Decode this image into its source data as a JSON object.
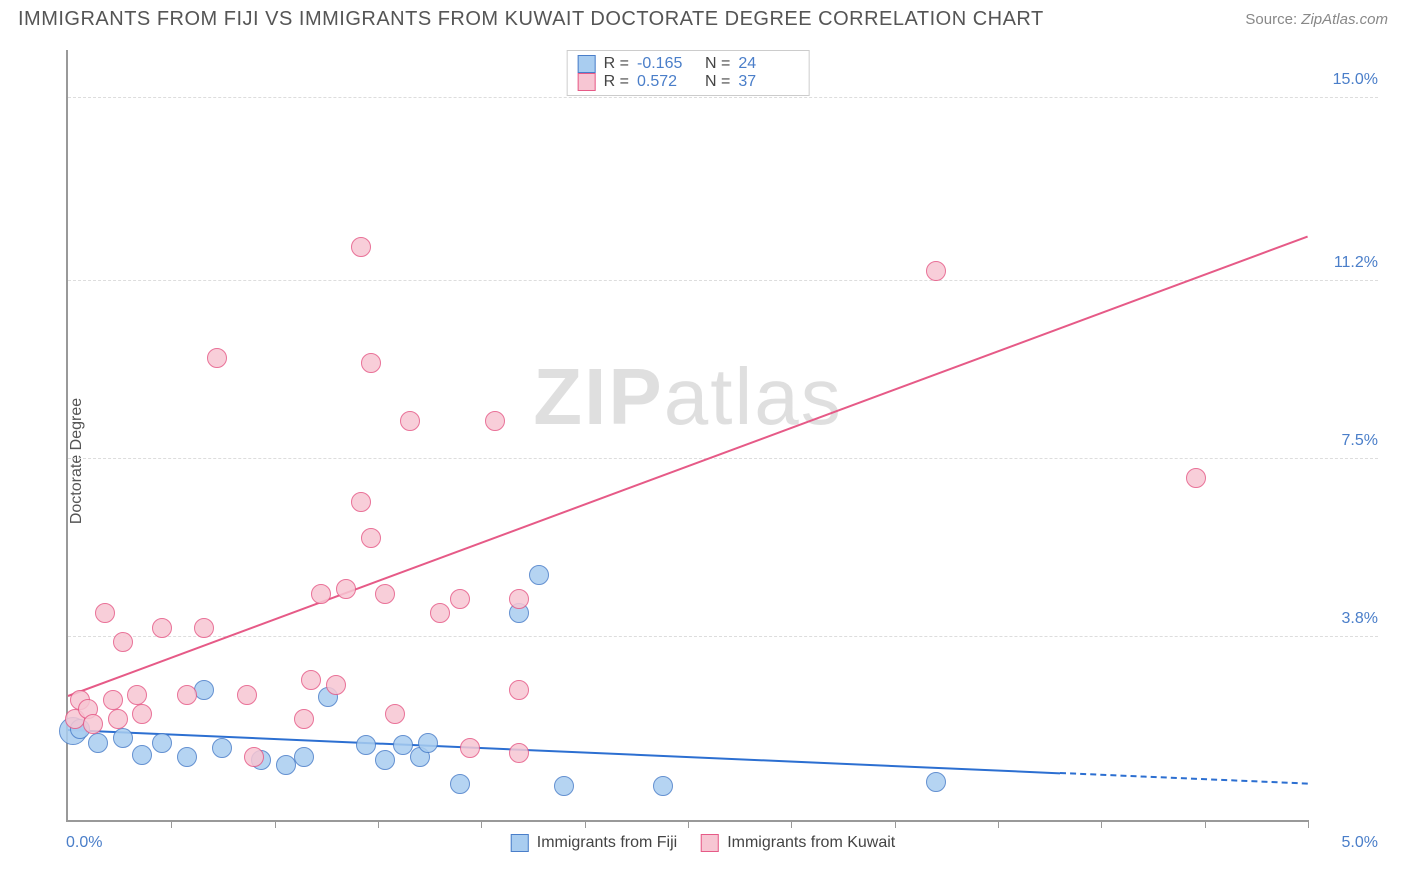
{
  "title": "IMMIGRANTS FROM FIJI VS IMMIGRANTS FROM KUWAIT DOCTORATE DEGREE CORRELATION CHART",
  "source_label": "Source:",
  "source_value": "ZipAtlas.com",
  "y_axis_label": "Doctorate Degree",
  "watermark_a": "ZIP",
  "watermark_b": "atlas",
  "chart": {
    "type": "scatter",
    "background_color": "#ffffff",
    "grid_color": "#dddddd",
    "axis_color": "#999999",
    "x_min": 0.0,
    "x_max": 5.0,
    "y_min": 0.0,
    "y_max": 16.0,
    "x_origin_label": "0.0%",
    "x_max_label": "5.0%",
    "y_ticks": [
      {
        "value": 3.8,
        "label": "3.8%"
      },
      {
        "value": 7.5,
        "label": "7.5%"
      },
      {
        "value": 11.2,
        "label": "11.2%"
      },
      {
        "value": 15.0,
        "label": "15.0%"
      }
    ],
    "x_tick_count": 12,
    "marker_radius": 10,
    "marker_stroke_width": 1.5,
    "series": [
      {
        "id": "fiji",
        "label": "Immigrants from Fiji",
        "fill_color": "#a9cdf0",
        "stroke_color": "#4a7ec9",
        "r_label": "R =",
        "r_value": "-0.165",
        "n_label": "N =",
        "n_value": "24",
        "trend": {
          "x1": 0.0,
          "y1": 1.85,
          "x2": 4.0,
          "y2": 0.95,
          "color": "#2c6fd1"
        },
        "trend_extrap": {
          "x1": 4.0,
          "y1": 0.95,
          "x2": 5.0,
          "y2": 0.73,
          "color": "#2c6fd1"
        },
        "points": [
          {
            "x": 0.02,
            "y": 1.85,
            "r": 14
          },
          {
            "x": 0.05,
            "y": 1.9
          },
          {
            "x": 0.12,
            "y": 1.6
          },
          {
            "x": 0.22,
            "y": 1.7
          },
          {
            "x": 0.3,
            "y": 1.35
          },
          {
            "x": 0.38,
            "y": 1.6
          },
          {
            "x": 0.48,
            "y": 1.3
          },
          {
            "x": 0.55,
            "y": 2.7
          },
          {
            "x": 0.62,
            "y": 1.5
          },
          {
            "x": 0.78,
            "y": 1.25
          },
          {
            "x": 0.88,
            "y": 1.15
          },
          {
            "x": 0.95,
            "y": 1.3
          },
          {
            "x": 1.05,
            "y": 2.55
          },
          {
            "x": 1.2,
            "y": 1.55
          },
          {
            "x": 1.28,
            "y": 1.25
          },
          {
            "x": 1.35,
            "y": 1.55
          },
          {
            "x": 1.42,
            "y": 1.3
          },
          {
            "x": 1.45,
            "y": 1.6
          },
          {
            "x": 1.58,
            "y": 0.75
          },
          {
            "x": 1.82,
            "y": 4.3
          },
          {
            "x": 1.9,
            "y": 5.1
          },
          {
            "x": 2.0,
            "y": 0.7
          },
          {
            "x": 2.4,
            "y": 0.7
          },
          {
            "x": 3.5,
            "y": 0.8
          }
        ]
      },
      {
        "id": "kuwait",
        "label": "Immigrants from Kuwait",
        "fill_color": "#f7c6d3",
        "stroke_color": "#e65a87",
        "r_label": "R =",
        "r_value": "0.572",
        "n_label": "N =",
        "n_value": "37",
        "trend": {
          "x1": 0.0,
          "y1": 2.55,
          "x2": 5.0,
          "y2": 12.1,
          "color": "#e65a87"
        },
        "points": [
          {
            "x": 0.03,
            "y": 2.1
          },
          {
            "x": 0.05,
            "y": 2.5
          },
          {
            "x": 0.08,
            "y": 2.3
          },
          {
            "x": 0.1,
            "y": 2.0
          },
          {
            "x": 0.15,
            "y": 4.3
          },
          {
            "x": 0.18,
            "y": 2.5
          },
          {
            "x": 0.2,
            "y": 2.1
          },
          {
            "x": 0.22,
            "y": 3.7
          },
          {
            "x": 0.28,
            "y": 2.6
          },
          {
            "x": 0.3,
            "y": 2.2
          },
          {
            "x": 0.38,
            "y": 4.0
          },
          {
            "x": 0.48,
            "y": 2.6
          },
          {
            "x": 0.55,
            "y": 4.0
          },
          {
            "x": 0.6,
            "y": 9.6
          },
          {
            "x": 0.72,
            "y": 2.6
          },
          {
            "x": 0.75,
            "y": 1.3
          },
          {
            "x": 0.95,
            "y": 2.1
          },
          {
            "x": 0.98,
            "y": 2.9
          },
          {
            "x": 1.02,
            "y": 4.7
          },
          {
            "x": 1.08,
            "y": 2.8
          },
          {
            "x": 1.12,
            "y": 4.8
          },
          {
            "x": 1.18,
            "y": 6.6
          },
          {
            "x": 1.18,
            "y": 11.9
          },
          {
            "x": 1.22,
            "y": 5.85
          },
          {
            "x": 1.22,
            "y": 9.5
          },
          {
            "x": 1.28,
            "y": 4.7
          },
          {
            "x": 1.32,
            "y": 2.2
          },
          {
            "x": 1.38,
            "y": 8.3
          },
          {
            "x": 1.5,
            "y": 4.3
          },
          {
            "x": 1.58,
            "y": 4.6
          },
          {
            "x": 1.62,
            "y": 1.5
          },
          {
            "x": 1.72,
            "y": 8.3
          },
          {
            "x": 1.82,
            "y": 4.6
          },
          {
            "x": 1.82,
            "y": 2.7
          },
          {
            "x": 1.82,
            "y": 1.4
          },
          {
            "x": 3.5,
            "y": 11.4
          },
          {
            "x": 4.55,
            "y": 7.1
          }
        ]
      }
    ]
  }
}
